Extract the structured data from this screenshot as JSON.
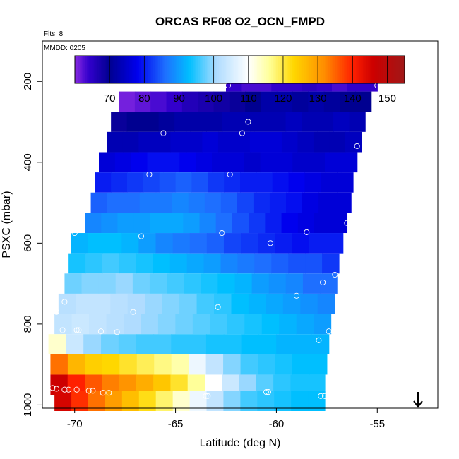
{
  "chart_data": {
    "type": "heatmap",
    "title": "ORCAS RF08 O2_OCN_FMPD",
    "notes": {
      "flights": "Flts: 8",
      "mmdd": "MMDD: 0205"
    },
    "xlabel": "Latitude (deg N)",
    "ylabel": "PSXC (mbar)",
    "xlim": [
      -71.6,
      -52.0
    ],
    "ylim": [
      1008,
      100
    ],
    "y_reversed": true,
    "x_ticks": [
      -70,
      -65,
      -60,
      -55
    ],
    "x_tick_labels": [
      "-70",
      "-65",
      "-60",
      "-55"
    ],
    "y_ticks": [
      200,
      400,
      600,
      800,
      1000
    ],
    "y_tick_labels": [
      "200",
      "400",
      "600",
      "800",
      "1000"
    ],
    "colorbar": {
      "range": [
        60,
        155
      ],
      "ticks": [
        70,
        80,
        90,
        100,
        110,
        120,
        130,
        140,
        150
      ],
      "tick_labels": [
        "70",
        "80",
        "90",
        "100",
        "110",
        "120",
        "130",
        "140",
        "150"
      ],
      "stops": [
        {
          "v": 60,
          "c": "#8a2be2"
        },
        {
          "v": 64,
          "c": "#3300cc"
        },
        {
          "v": 70,
          "c": "#000090"
        },
        {
          "v": 78,
          "c": "#0000ee"
        },
        {
          "v": 86,
          "c": "#1e6fff"
        },
        {
          "v": 93,
          "c": "#00bfff"
        },
        {
          "v": 101,
          "c": "#b0dcff"
        },
        {
          "v": 110,
          "c": "#ffffff"
        },
        {
          "v": 116,
          "c": "#ffff99"
        },
        {
          "v": 123,
          "c": "#ffd700"
        },
        {
          "v": 132,
          "c": "#ff8c00"
        },
        {
          "v": 140,
          "c": "#ff2000"
        },
        {
          "v": 146,
          "c": "#cc0000"
        },
        {
          "v": 155,
          "c": "#a01818"
        }
      ]
    },
    "rows": [
      {
        "p": 200,
        "x0": -62.5,
        "x1": -55.0,
        "v": [
          64,
          63,
          63,
          64,
          64,
          65,
          64,
          63,
          64,
          64
        ]
      },
      {
        "p": 250,
        "x0": -67.8,
        "x1": -55.3,
        "v": [
          61,
          62,
          63,
          64,
          66,
          67,
          68,
          69,
          70,
          72,
          72,
          71,
          72,
          71,
          70,
          70
        ]
      },
      {
        "p": 300,
        "x0": -68.2,
        "x1": -55.6,
        "v": [
          69,
          70,
          70,
          71,
          72,
          72,
          72,
          73,
          73,
          73,
          73,
          74,
          73,
          73,
          74,
          73
        ]
      },
      {
        "p": 350,
        "x0": -68.4,
        "x1": -55.8,
        "v": [
          73,
          73,
          74,
          74,
          75,
          75,
          76,
          75,
          75,
          76,
          76,
          75,
          74,
          73,
          73,
          74
        ]
      },
      {
        "p": 400,
        "x0": -68.8,
        "x1": -56.0,
        "v": [
          76,
          77,
          78,
          79,
          79,
          78,
          77,
          76,
          76,
          75,
          76,
          76,
          75,
          75,
          76,
          76
        ]
      },
      {
        "p": 450,
        "x0": -69.0,
        "x1": -56.2,
        "v": [
          80,
          81,
          82,
          83,
          84,
          85,
          84,
          82,
          81,
          80,
          80,
          79,
          78,
          77,
          76,
          76
        ]
      },
      {
        "p": 500,
        "x0": -69.2,
        "x1": -56.3,
        "v": [
          85,
          86,
          86,
          87,
          87,
          88,
          87,
          86,
          85,
          83,
          81,
          80,
          79,
          77,
          76,
          76
        ]
      },
      {
        "p": 550,
        "x0": -69.5,
        "x1": -56.5,
        "v": [
          88,
          89,
          90,
          90,
          91,
          91,
          90,
          88,
          86,
          84,
          82,
          80,
          78,
          77,
          76,
          76
        ]
      },
      {
        "p": 600,
        "x0": -70.2,
        "x1": -56.7,
        "v": [
          92,
          93,
          93,
          92,
          90,
          88,
          87,
          86,
          85,
          83,
          82,
          81,
          80,
          79,
          80,
          80
        ]
      },
      {
        "p": 650,
        "x0": -70.3,
        "x1": -56.9,
        "v": [
          94,
          95,
          96,
          95,
          94,
          93,
          92,
          91,
          90,
          88,
          87,
          86,
          85,
          84,
          84,
          82
        ]
      },
      {
        "p": 700,
        "x0": -70.5,
        "x1": -57.0,
        "v": [
          98,
          99,
          99,
          100,
          98,
          97,
          96,
          95,
          94,
          93,
          92,
          90,
          89,
          88,
          86,
          86
        ]
      },
      {
        "p": 750,
        "x0": -70.8,
        "x1": -57.1,
        "v": [
          102,
          103,
          103,
          102,
          101,
          100,
          99,
          98,
          96,
          95,
          93,
          92,
          91,
          90,
          89,
          88
        ]
      },
      {
        "p": 800,
        "x0": -71.0,
        "x1": -57.3,
        "v": [
          103,
          104,
          103,
          102,
          101,
          100,
          99,
          98,
          97,
          96,
          95,
          94,
          93,
          92,
          91,
          90
        ]
      },
      {
        "p": 850,
        "x0": -71.3,
        "x1": -57.4,
        "v": [
          113,
          104,
          100,
          98,
          97,
          96,
          96,
          95,
          95,
          94,
          94,
          93,
          93,
          92,
          92,
          92
        ]
      },
      {
        "p": 900,
        "x0": -71.2,
        "x1": -57.5,
        "v": [
          134,
          127,
          124,
          123,
          121,
          119,
          117,
          115,
          108,
          103,
          99,
          96,
          95,
          94,
          93,
          93
        ]
      },
      {
        "p": 950,
        "x0": -71.2,
        "x1": -57.6,
        "v": [
          146,
          140,
          136,
          133,
          131,
          128,
          125,
          121,
          116,
          110,
          104,
          100,
          97,
          95,
          94,
          94
        ]
      },
      {
        "p": 990,
        "x0": -71.0,
        "x1": -57.6,
        "v": [
          145,
          139,
          134,
          130,
          126,
          122,
          118,
          113,
          108,
          103,
          99,
          96,
          95,
          94,
          93,
          93
        ]
      }
    ],
    "points": [
      [
        -62.5,
        195
      ],
      [
        -62.4,
        210
      ],
      [
        -57.9,
        188
      ],
      [
        -55.0,
        210
      ],
      [
        -67.8,
        218
      ],
      [
        -68.1,
        258
      ],
      [
        -68.4,
        300
      ],
      [
        -65.6,
        328
      ],
      [
        -61.7,
        328
      ],
      [
        -61.4,
        300
      ],
      [
        -56.0,
        360
      ],
      [
        -69.0,
        375
      ],
      [
        -66.3,
        430
      ],
      [
        -62.3,
        430
      ],
      [
        -56.5,
        550
      ],
      [
        -70.3,
        575
      ],
      [
        -70.0,
        575
      ],
      [
        -66.7,
        583
      ],
      [
        -62.7,
        575
      ],
      [
        -58.5,
        573
      ],
      [
        -60.3,
        600
      ],
      [
        -57.7,
        697
      ],
      [
        -57.1,
        678
      ],
      [
        -59.0,
        730
      ],
      [
        -70.5,
        745
      ],
      [
        -70.9,
        770
      ],
      [
        -67.1,
        770
      ],
      [
        -62.9,
        758
      ],
      [
        -70.6,
        815
      ],
      [
        -69.9,
        815
      ],
      [
        -69.8,
        815
      ],
      [
        -68.7,
        818
      ],
      [
        -67.9,
        820
      ],
      [
        -57.9,
        840
      ],
      [
        -57.4,
        818
      ],
      [
        -71.1,
        958
      ],
      [
        -70.9,
        960
      ],
      [
        -70.5,
        962
      ],
      [
        -70.3,
        962
      ],
      [
        -69.9,
        962
      ],
      [
        -69.3,
        965
      ],
      [
        -69.1,
        965
      ],
      [
        -68.6,
        970
      ],
      [
        -68.3,
        970
      ],
      [
        -63.5,
        978
      ],
      [
        -63.4,
        978
      ],
      [
        -60.5,
        968
      ],
      [
        -60.4,
        968
      ],
      [
        -57.8,
        978
      ],
      [
        -57.6,
        978
      ]
    ]
  }
}
